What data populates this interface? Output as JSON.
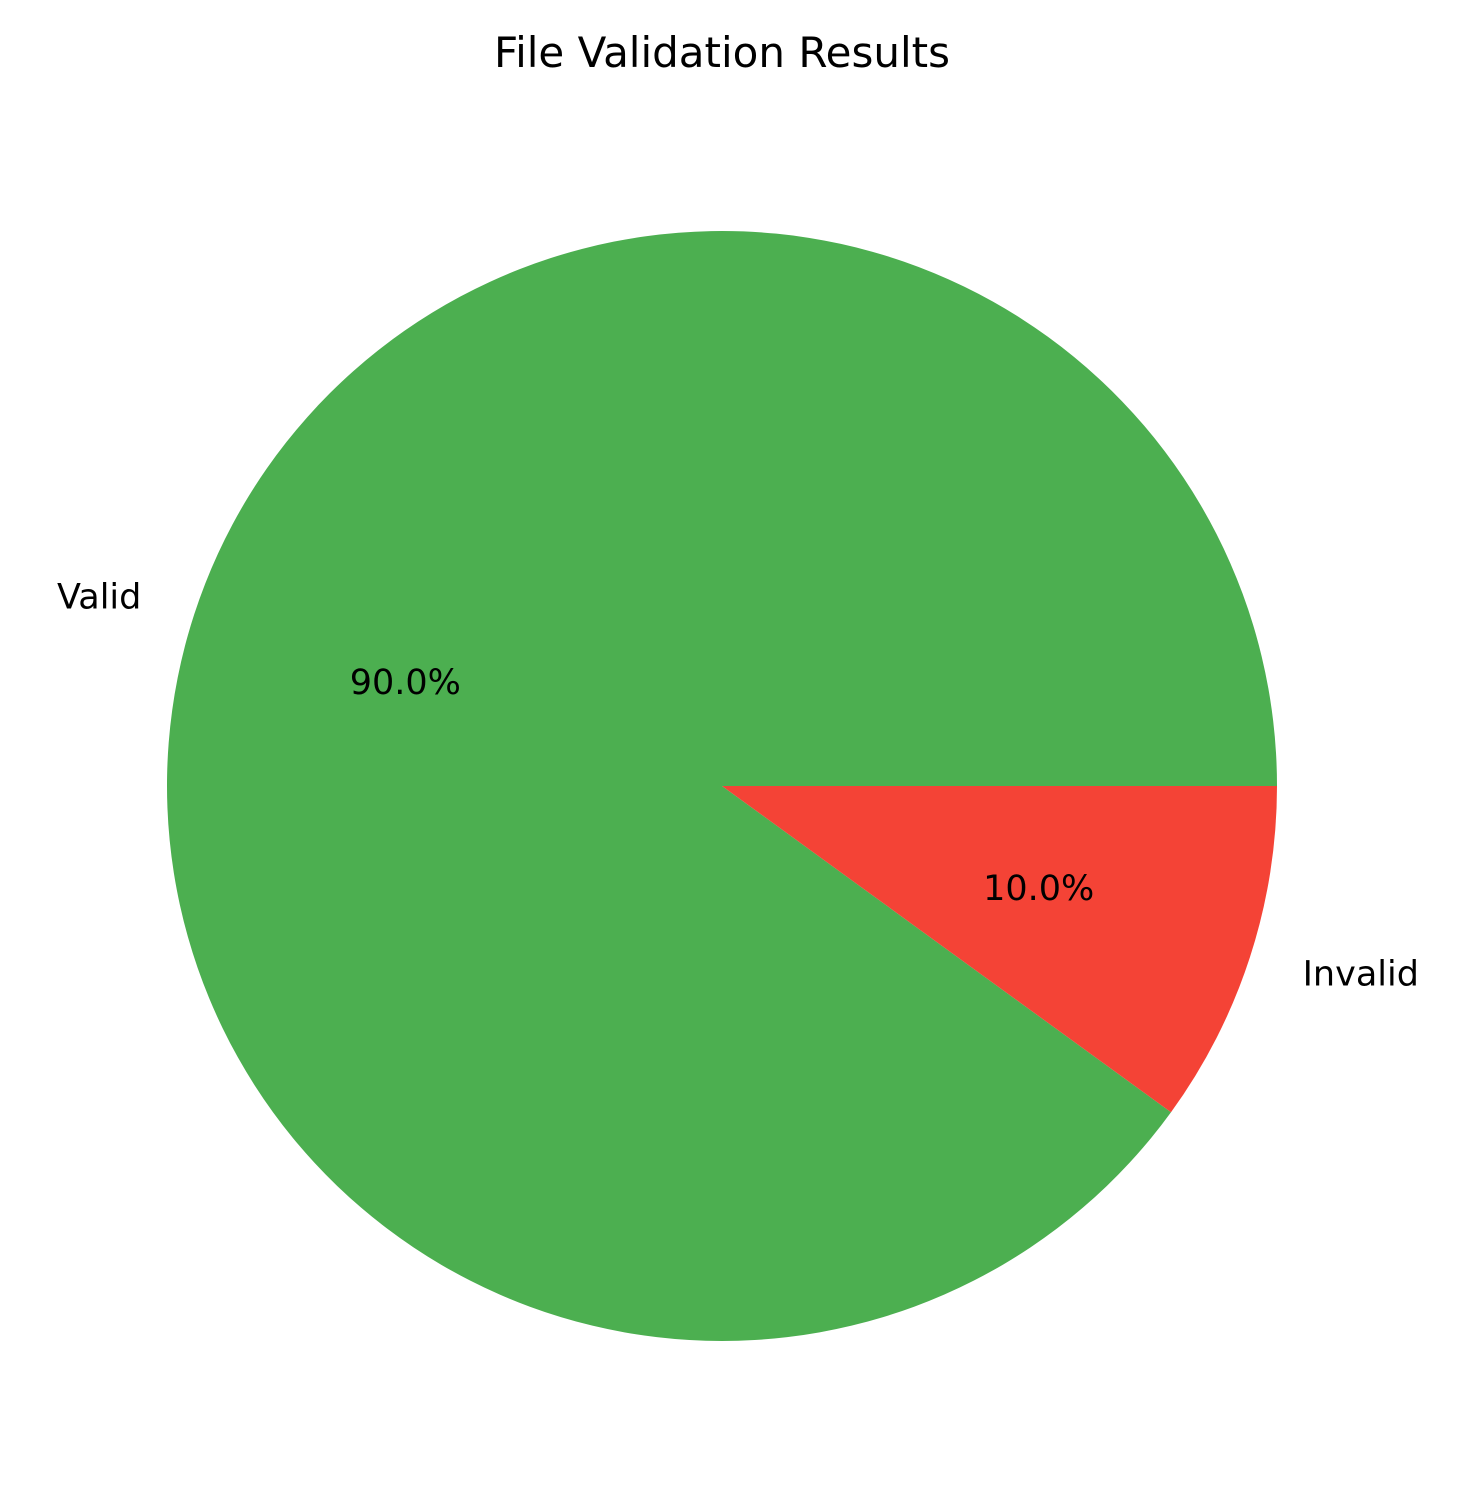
{
  "chart_data": {
    "type": "pie",
    "title": "File Validation Results",
    "slices": [
      {
        "label": "Valid",
        "value": 90.0,
        "pct_label": "90.0%",
        "color": "#4caf50"
      },
      {
        "label": "Invalid",
        "value": 10.0,
        "pct_label": "10.0%",
        "color": "#f44336"
      }
    ],
    "start_angle_deg": 0,
    "direction": "counterclockwise",
    "legend": "none"
  }
}
